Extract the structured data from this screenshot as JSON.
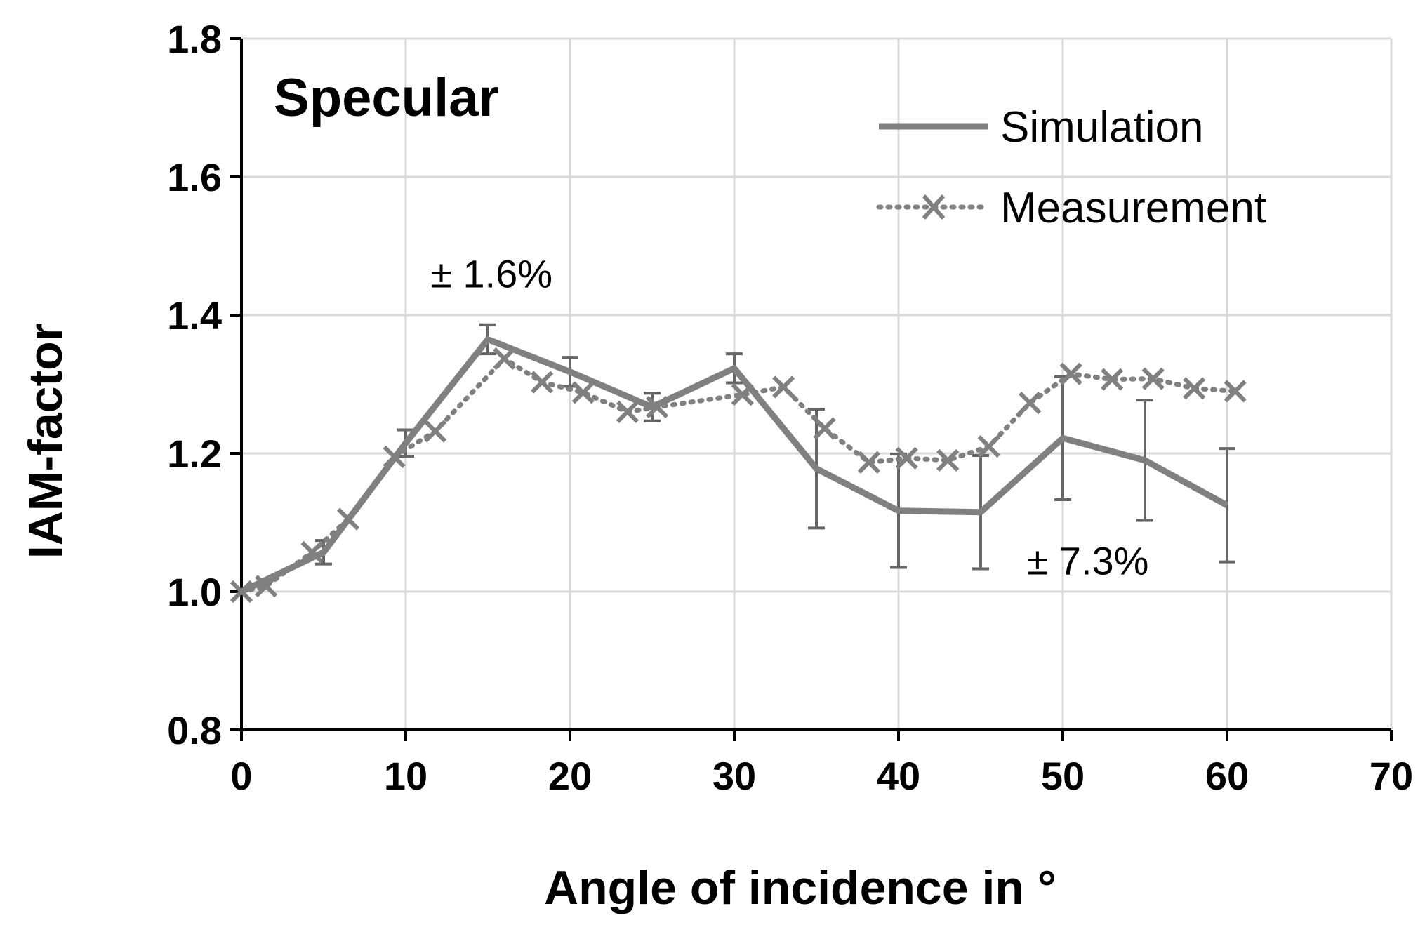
{
  "chart_data": {
    "type": "line",
    "title": "Specular",
    "xlabel": "Angle of incidence in °",
    "ylabel": "IAM-factor",
    "xlim": [
      0,
      70
    ],
    "ylim": [
      0.8,
      1.8
    ],
    "x_ticks": [
      0,
      10,
      20,
      30,
      40,
      50,
      60,
      70
    ],
    "y_ticks": [
      0.8,
      1.0,
      1.2,
      1.4,
      1.6,
      1.8
    ],
    "grid": true,
    "legend_position": "top-right",
    "colors": {
      "series": "#808080",
      "errorbar": "#666666",
      "grid": "#d9d9d9",
      "axis": "#000000"
    },
    "series": [
      {
        "name": "Simulation",
        "style": "solid",
        "x": [
          0,
          5,
          10,
          15,
          20,
          25,
          30,
          35,
          40,
          45,
          50,
          55,
          60
        ],
        "y": [
          1.0,
          1.057,
          1.215,
          1.365,
          1.318,
          1.267,
          1.323,
          1.178,
          1.117,
          1.115,
          1.222,
          1.19,
          1.125
        ],
        "error": [
          0.0,
          0.017,
          0.019,
          0.021,
          0.021,
          0.02,
          0.021,
          0.086,
          0.082,
          0.082,
          0.089,
          0.087,
          0.082
        ]
      },
      {
        "name": "Measurement",
        "style": "dotted",
        "marker": "x",
        "x": [
          0,
          1.5,
          4.3,
          6.5,
          9.3,
          11.8,
          16,
          18.3,
          20.8,
          23.5,
          25.3,
          30.5,
          33,
          35.5,
          38.2,
          40.5,
          43,
          45.5,
          48,
          50.5,
          53,
          55.5,
          58,
          60.5
        ],
        "y": [
          1.0,
          1.008,
          1.057,
          1.105,
          1.195,
          1.232,
          1.337,
          1.303,
          1.288,
          1.26,
          1.267,
          1.285,
          1.296,
          1.236,
          1.187,
          1.193,
          1.19,
          1.21,
          1.273,
          1.315,
          1.307,
          1.308,
          1.294,
          1.29
        ]
      }
    ],
    "annotations": [
      {
        "text": "± 1.6%",
        "x": 11.5,
        "y": 1.44
      },
      {
        "text": "± 7.3%",
        "x": 47.8,
        "y": 1.025
      }
    ]
  }
}
